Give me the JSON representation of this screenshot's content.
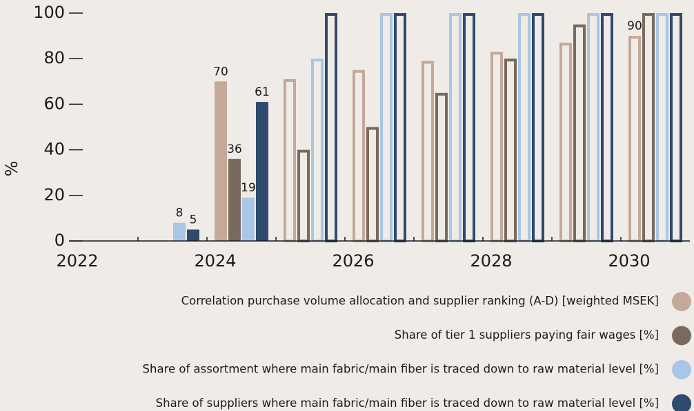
{
  "chart_data": {
    "type": "bar",
    "y_label": "%",
    "categories": [
      "2022",
      null,
      "2024",
      null,
      "2026",
      null,
      "2028",
      null,
      "2030"
    ],
    "fill_style": [
      "solid",
      "solid",
      "solid",
      "outline",
      "outline",
      "outline",
      "outline",
      "outline",
      "outline"
    ],
    "series": [
      {
        "name": "Correlation purchase volume allocation and supplier ranking (A-D) [weighted MSEK]",
        "color": "#c4a999",
        "values": [
          0,
          0,
          70,
          71,
          75,
          79,
          83,
          87,
          90
        ],
        "value_labels": [
          null,
          null,
          "70",
          null,
          null,
          null,
          null,
          null,
          "90"
        ]
      },
      {
        "name": "Share of tier 1 suppliers paying fair wages [%]",
        "color": "#7a6a5e",
        "values": [
          0,
          0,
          36,
          40,
          50,
          65,
          80,
          95,
          100
        ],
        "value_labels": [
          null,
          null,
          "36",
          null,
          null,
          null,
          null,
          null,
          null
        ]
      },
      {
        "name": "Share of assortment where main fabric/main fiber is traced down to raw material level [%]",
        "color": "#a9c6e6",
        "values": [
          0,
          8,
          19,
          80,
          100,
          100,
          100,
          100,
          100
        ],
        "value_labels": [
          null,
          "8",
          "19",
          null,
          null,
          null,
          null,
          null,
          null
        ]
      },
      {
        "name": "Share of suppliers where main fabric/main fiber is traced down to raw material  level [%]",
        "color": "#2e4a6e",
        "values": [
          0,
          5,
          61,
          100,
          100,
          100,
          100,
          100,
          100
        ],
        "value_labels": [
          null,
          "5",
          "61",
          null,
          null,
          null,
          null,
          null,
          null
        ]
      }
    ],
    "ylim": [
      0,
      100
    ],
    "yticks": [
      0,
      20,
      40,
      60,
      80,
      100
    ],
    "grid": false,
    "legend": "bottom-right"
  }
}
